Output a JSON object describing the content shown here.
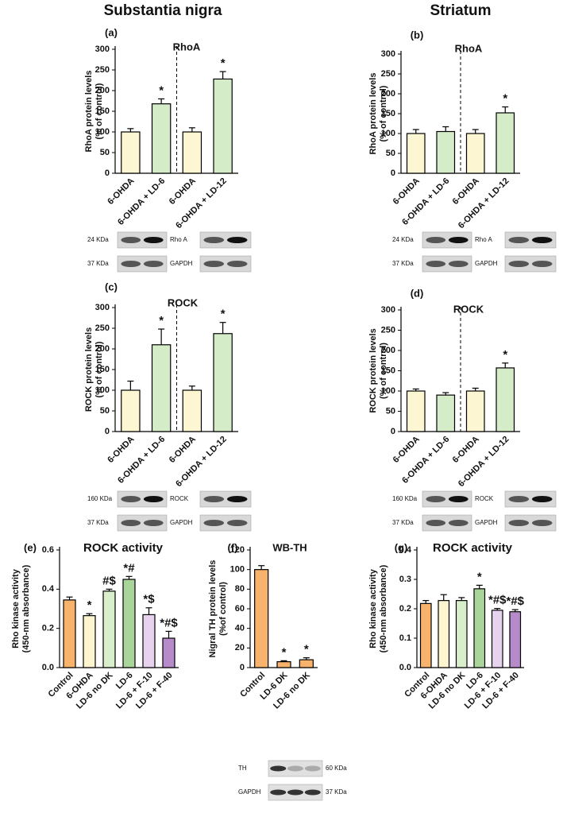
{
  "headers": [
    "Substantia nigra",
    "Striatum"
  ],
  "chart_data": [
    {
      "type": "bar",
      "panel": "(a)",
      "title": "RhoA",
      "ylabel": [
        "RhoA protein levels",
        "(% of control)"
      ],
      "categories": [
        "6-OHDA",
        "6-OHDA + LD-6",
        "6-OHDA",
        "6-OHDA + LD-12"
      ],
      "values": [
        100,
        168,
        100,
        228
      ],
      "errors": [
        8,
        12,
        10,
        18
      ],
      "annotations": [
        null,
        "*",
        null,
        "*"
      ],
      "colors": [
        "#fdf6d3",
        "#d5ecc9",
        "#fdf6d3",
        "#d5ecc9"
      ],
      "ylim": [
        0,
        300
      ],
      "yticks": [
        0,
        50,
        100,
        150,
        200,
        250,
        300
      ],
      "divider": true,
      "blot": {
        "rows": [
          {
            "left": "24 KDa",
            "mid": "Rho A"
          },
          {
            "left": "37 KDa",
            "mid": "GAPDH"
          }
        ]
      }
    },
    {
      "type": "bar",
      "panel": "(b)",
      "title": "RhoA",
      "ylabel": [
        "RhoA protein levels",
        "(% of control)"
      ],
      "categories": [
        "6-OHDA",
        "6-OHDA + LD-6",
        "6-OHDA",
        "6-OHDA + LD-12"
      ],
      "values": [
        100,
        105,
        100,
        152
      ],
      "errors": [
        10,
        12,
        10,
        15
      ],
      "annotations": [
        null,
        null,
        null,
        "*"
      ],
      "colors": [
        "#fdf6d3",
        "#d5ecc9",
        "#fdf6d3",
        "#d5ecc9"
      ],
      "ylim": [
        0,
        300
      ],
      "yticks": [
        0,
        50,
        100,
        150,
        200,
        250,
        300
      ],
      "divider": true,
      "blot": {
        "rows": [
          {
            "left": "24 KDa",
            "mid": "Rho A"
          },
          {
            "left": "37 KDa",
            "mid": "GAPDH"
          }
        ]
      }
    },
    {
      "type": "bar",
      "panel": "(c)",
      "title": "ROCK",
      "ylabel": [
        "ROCK protein levels",
        "(% of control)"
      ],
      "categories": [
        "6-OHDA",
        "6-OHDA + LD-6",
        "6-OHDA",
        "6-OHDA + LD-12"
      ],
      "values": [
        100,
        210,
        100,
        237
      ],
      "errors": [
        22,
        38,
        10,
        27
      ],
      "annotations": [
        null,
        "*",
        null,
        "*"
      ],
      "colors": [
        "#fdf6d3",
        "#d5ecc9",
        "#fdf6d3",
        "#d5ecc9"
      ],
      "ylim": [
        0,
        300
      ],
      "yticks": [
        0,
        50,
        100,
        150,
        200,
        250,
        300
      ],
      "divider": true,
      "blot": {
        "rows": [
          {
            "left": "160 KDa",
            "mid": "ROCK"
          },
          {
            "left": "37 KDa",
            "mid": "GAPDH"
          }
        ]
      }
    },
    {
      "type": "bar",
      "panel": "(d)",
      "title": "ROCK",
      "ylabel": [
        "ROCK protein levels",
        "(% of control)"
      ],
      "categories": [
        "6-OHDA",
        "6-OHDA + LD-6",
        "6-OHDA",
        "6-OHDA + LD-12"
      ],
      "values": [
        100,
        90,
        100,
        157
      ],
      "errors": [
        5,
        6,
        7,
        12
      ],
      "annotations": [
        null,
        null,
        null,
        "*"
      ],
      "colors": [
        "#fdf6d3",
        "#d5ecc9",
        "#fdf6d3",
        "#d5ecc9"
      ],
      "ylim": [
        0,
        300
      ],
      "yticks": [
        0,
        50,
        100,
        150,
        200,
        250,
        300
      ],
      "divider": true,
      "blot": {
        "rows": [
          {
            "left": "160 KDa",
            "mid": "ROCK"
          },
          {
            "left": "37 KDa",
            "mid": "GAPDH"
          }
        ]
      }
    },
    {
      "type": "bar",
      "panel": "(e)",
      "title": "ROCK activity",
      "ylabel": [
        "Rho kinase activity",
        "(450-nm absorbance)"
      ],
      "categories": [
        "Control",
        "6-OHDA",
        "LD-6 no DK",
        "LD-6",
        "LD-6 + F-10",
        "LD-6 + F-40"
      ],
      "values": [
        0.345,
        0.265,
        0.39,
        0.45,
        0.27,
        0.15
      ],
      "errors": [
        0.015,
        0.01,
        0.01,
        0.015,
        0.035,
        0.035
      ],
      "annotations": [
        null,
        "*",
        "#$",
        "*#",
        "*$",
        "*#$"
      ],
      "colors": [
        "#f7b26b",
        "#fdf5cf",
        "#d9efcc",
        "#a9d49a",
        "#e8d3ef",
        "#b78bc9"
      ],
      "ylim": [
        0,
        0.6
      ],
      "yticks": [
        {
          "value": 0,
          "label": "0.0"
        },
        0.2,
        0.4,
        0.6
      ],
      "divider": false
    },
    {
      "type": "bar",
      "panel": "(f)",
      "title": "WB-TH",
      "ylabel": [
        "Nigral TH protein levels",
        "(%of control)"
      ],
      "categories": [
        "Control",
        "LD-6 DK",
        "LD-6 no DK"
      ],
      "values": [
        100,
        6,
        8
      ],
      "errors": [
        4,
        1,
        2
      ],
      "annotations": [
        null,
        "*",
        "*"
      ],
      "colors": [
        "#f7b26b",
        "#f7b26b",
        "#f7b26b"
      ],
      "ylim": [
        0,
        120
      ],
      "yticks": [
        0,
        20,
        40,
        60,
        80,
        100,
        120
      ],
      "divider": false,
      "blot": {
        "rows": [
          {
            "left": "TH",
            "right": "60 KDa"
          },
          {
            "left": "GAPDH",
            "right": "37 KDa"
          }
        ]
      }
    },
    {
      "type": "bar",
      "panel": "(g)",
      "title": "ROCK activity",
      "ylabel": [
        "Rho kinase activity",
        "(450-nm absorbance)"
      ],
      "categories": [
        "Control",
        "6-OHDA",
        "LD-6 no DK",
        "LD-6",
        "LD-6 + F-10",
        "LD-6 + F-40"
      ],
      "values": [
        0.218,
        0.228,
        0.228,
        0.268,
        0.195,
        0.19
      ],
      "errors": [
        0.01,
        0.02,
        0.01,
        0.012,
        0.006,
        0.007
      ],
      "annotations": [
        null,
        null,
        null,
        "*",
        "*#$",
        "*#$"
      ],
      "colors": [
        "#f7b26b",
        "#fdf5cf",
        "#d9efcc",
        "#a9d49a",
        "#e8d3ef",
        "#b78bc9"
      ],
      "ylim": [
        0,
        0.4
      ],
      "yticks": [
        {
          "value": 0,
          "label": "0.0"
        },
        0.1,
        0.2,
        0.3,
        0.4
      ],
      "divider": false
    }
  ]
}
